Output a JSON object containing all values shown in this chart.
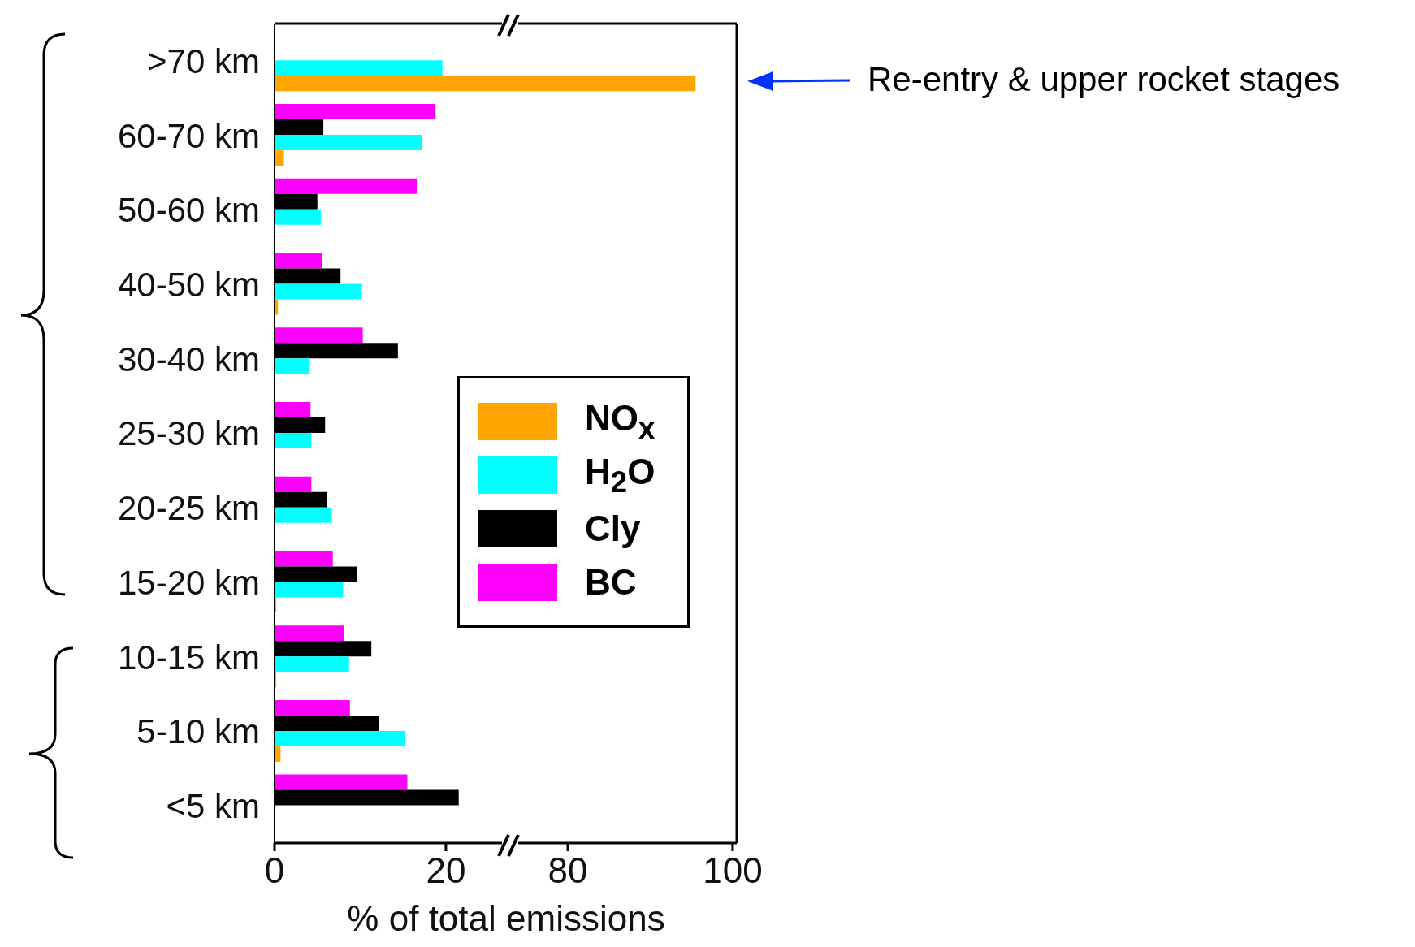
{
  "chart_data": [
    {
      "type": "bar",
      "orientation": "horizontal",
      "xlabel": "% of total emissions",
      "categories": [
        ">70 km",
        "60-70 km",
        "50-60 km",
        "40-50 km",
        "30-40 km",
        "25-30 km",
        "20-25 km",
        "15-20 km",
        "10-15 km",
        "5-10 km",
        "<5 km"
      ],
      "xlim": [
        0,
        27.5
      ],
      "xticks": [
        0,
        20
      ],
      "legend": "right",
      "annotations": [
        "Re-entry & upper rocket stages"
      ],
      "series": [
        {
          "name": "NO$_{x}$",
          "color": "#ffa500",
          "values": [
            null,
            1.1,
            null,
            0.4,
            null,
            null,
            null,
            0.2,
            0.2,
            0.7,
            null
          ]
        },
        {
          "name": "H$_{2}$O",
          "color": "#00ffff",
          "values": [
            19.6,
            17.2,
            5.4,
            10.2,
            4.1,
            4.3,
            6.7,
            8.0,
            8.7,
            15.2,
            null
          ]
        },
        {
          "name": "Cly",
          "color": "#000000",
          "values": [
            null,
            5.7,
            5.0,
            7.7,
            14.4,
            5.9,
            6.1,
            9.6,
            11.3,
            12.2,
            21.5
          ]
        },
        {
          "name": "BC",
          "color": "#ff00ff",
          "values": [
            null,
            18.8,
            16.6,
            5.5,
            10.3,
            4.2,
            4.3,
            6.8,
            8.1,
            8.8,
            15.5
          ]
        }
      ]
    },
    {
      "type": "bar",
      "orientation": "horizontal",
      "xlim": [
        73,
        100.5
      ],
      "xticks": [
        80,
        100
      ],
      "tick_labels": "x",
      "series": [
        {
          "color": "#ffa500",
          "values": [
            95.5,
            null,
            null,
            null,
            null,
            null,
            null,
            null,
            null,
            null,
            null
          ]
        }
      ]
    }
  ]
}
